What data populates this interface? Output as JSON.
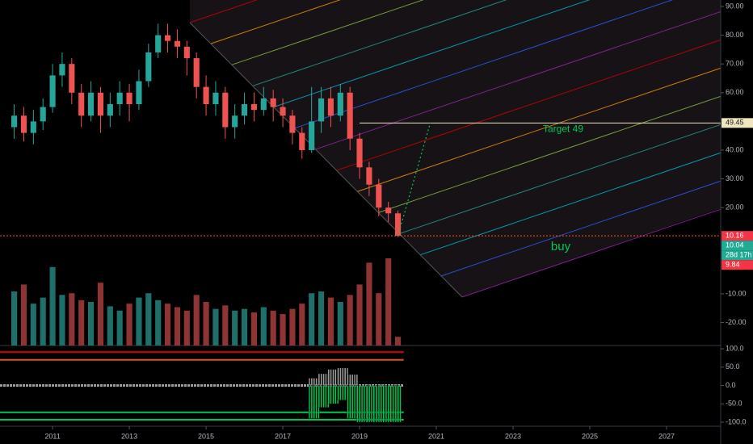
{
  "chart_data": {
    "type": "candlestick",
    "up_color": "#26a69a",
    "down_color": "#ef5350",
    "volume_up_color": "#1f6f6b",
    "volume_down_color": "#8e3434",
    "xlim": [
      2009.63,
      2028.41
    ],
    "xticks": [
      2011,
      2013,
      2015,
      2017,
      2019,
      2021,
      2023,
      2025,
      2027
    ],
    "ylim": [
      -28,
      92.25
    ],
    "yticks": [
      {
        "value": 90,
        "label": "90.00"
      },
      {
        "value": 80,
        "label": "80.00"
      },
      {
        "value": 70,
        "label": "70.00"
      },
      {
        "value": 60,
        "label": "60.00"
      },
      {
        "value": 40,
        "label": "40.00"
      },
      {
        "value": 30,
        "label": "30.00"
      },
      {
        "value": 20,
        "label": "20.00"
      },
      {
        "value": -10,
        "label": "-10.00"
      },
      {
        "value": -20,
        "label": "-20.00"
      }
    ],
    "x": [
      2010.0,
      2010.25,
      2010.5,
      2010.75,
      2011.0,
      2011.25,
      2011.5,
      2011.75,
      2012.0,
      2012.25,
      2012.5,
      2012.75,
      2013.0,
      2013.25,
      2013.5,
      2013.75,
      2014.0,
      2014.25,
      2014.5,
      2014.75,
      2015.0,
      2015.25,
      2015.5,
      2015.75,
      2016.0,
      2016.25,
      2016.5,
      2016.75,
      2017.0,
      2017.25,
      2017.5,
      2017.75,
      2018.0,
      2018.25,
      2018.5,
      2018.75,
      2019.0,
      2019.25,
      2019.5,
      2019.75,
      2020.0
    ],
    "open": [
      48,
      52,
      46,
      50,
      55,
      66,
      70,
      60,
      52,
      60,
      52,
      56,
      60,
      56,
      64,
      74,
      80,
      78,
      76,
      72,
      62,
      56,
      60,
      48,
      52,
      56,
      54,
      58,
      55,
      52,
      46,
      40,
      50,
      58,
      52,
      60,
      44,
      34,
      28,
      20,
      18
    ],
    "high": [
      56,
      55,
      54,
      58,
      70,
      74,
      72,
      63,
      64,
      62,
      60,
      64,
      63,
      68,
      77,
      84,
      84,
      82,
      78,
      74,
      66,
      64,
      62,
      56,
      60,
      60,
      62,
      61,
      58,
      54,
      48,
      62,
      62,
      62,
      63,
      62,
      46,
      36,
      30,
      22,
      19
    ],
    "low": [
      44,
      43,
      42,
      47,
      53,
      62,
      56,
      48,
      50,
      46,
      48,
      52,
      50,
      54,
      62,
      72,
      74,
      72,
      66,
      58,
      52,
      52,
      44,
      44,
      49,
      50,
      52,
      50,
      48,
      42,
      37,
      39,
      46,
      48,
      50,
      40,
      30,
      24,
      17,
      15,
      9.84
    ],
    "close": [
      52,
      46,
      50,
      55,
      66,
      70,
      60,
      52,
      60,
      52,
      56,
      60,
      56,
      64,
      74,
      80,
      78,
      76,
      72,
      62,
      56,
      60,
      48,
      52,
      56,
      54,
      58,
      55,
      52,
      46,
      40,
      50,
      58,
      52,
      60,
      44,
      34,
      28,
      20,
      18,
      10.16
    ],
    "volume": [
      62,
      70,
      48,
      55,
      90,
      58,
      60,
      52,
      50,
      72,
      45,
      40,
      48,
      55,
      60,
      52,
      48,
      44,
      40,
      58,
      50,
      42,
      46,
      40,
      42,
      38,
      44,
      40,
      36,
      42,
      48,
      60,
      62,
      55,
      50,
      58,
      70,
      95,
      60,
      100,
      10
    ],
    "oscillator": {
      "ylim": [
        -111,
        109
      ],
      "yticks": [
        {
          "value": 100,
          "label": "100.0"
        },
        {
          "value": 50,
          "label": "50.0"
        },
        {
          "value": 0,
          "label": "0.0"
        },
        {
          "value": -50,
          "label": "-50.0"
        },
        {
          "value": -100,
          "label": "-100.0"
        }
      ],
      "upper": [
        0,
        0,
        0,
        0,
        0,
        0,
        0,
        0,
        0,
        0,
        0,
        0,
        0,
        0,
        0,
        0,
        0,
        0,
        0,
        0,
        0,
        0,
        0,
        0,
        0,
        0,
        0,
        0,
        0,
        0,
        0,
        20,
        32,
        44,
        48,
        30,
        0,
        0,
        0,
        0,
        0
      ],
      "lower": [
        0,
        0,
        0,
        0,
        0,
        0,
        0,
        0,
        0,
        0,
        0,
        0,
        0,
        0,
        0,
        0,
        0,
        0,
        0,
        0,
        0,
        0,
        0,
        0,
        0,
        0,
        0,
        0,
        0,
        0,
        0,
        -90,
        -60,
        -50,
        -40,
        -90,
        -100,
        -100,
        -100,
        -100,
        -100
      ],
      "upper_color": "#9e9e9e",
      "lower_color": "#00c853",
      "levels": [
        {
          "value": 91,
          "color": "#d50000"
        },
        {
          "value": 70,
          "color": "#e65100"
        },
        {
          "value": -73,
          "color": "#00c853"
        },
        {
          "value": -93,
          "color": "#00c853"
        }
      ]
    },
    "target_line": 49.45,
    "buy_line": 10.16,
    "annotations": {
      "target": "Target 49",
      "buy": "buy"
    },
    "price_badges": [
      {
        "value": 10.16,
        "color": "#f23645"
      },
      {
        "value": 10.04,
        "color": "#22ab94"
      },
      {
        "text": "28d 17h",
        "color": "#22ab94"
      },
      {
        "value": 9.84,
        "color": "#f23645"
      }
    ]
  }
}
